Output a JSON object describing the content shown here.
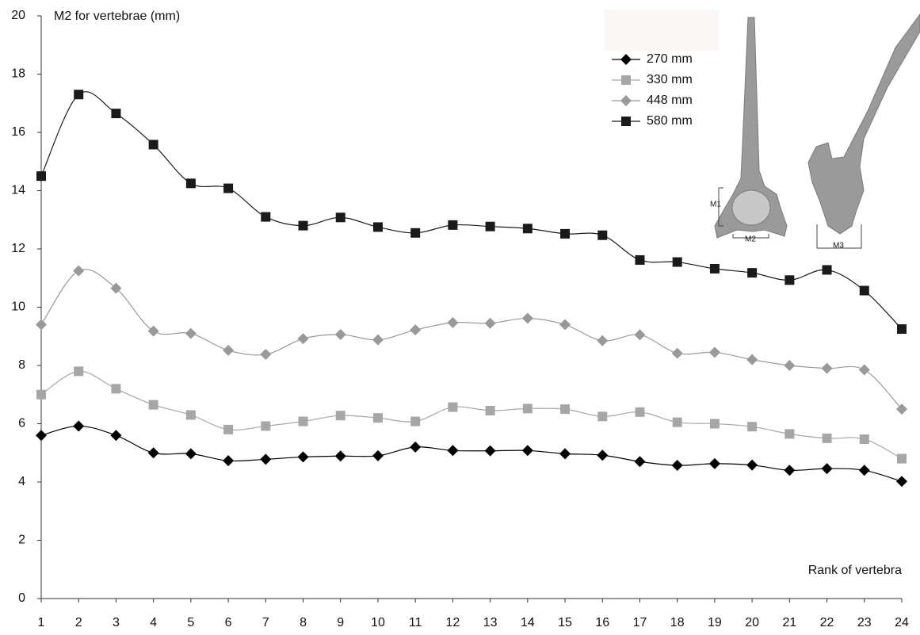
{
  "chart_data": {
    "type": "line",
    "y_label": "M2 for vertebrae (mm)",
    "x_label": "Rank of vertebra",
    "x": [
      1,
      2,
      3,
      4,
      5,
      6,
      7,
      8,
      9,
      10,
      11,
      12,
      13,
      14,
      15,
      16,
      17,
      18,
      19,
      20,
      21,
      22,
      23,
      24
    ],
    "xlim": [
      1,
      24
    ],
    "xticks": [
      1,
      2,
      3,
      4,
      5,
      6,
      7,
      8,
      9,
      10,
      11,
      12,
      13,
      14,
      15,
      16,
      17,
      18,
      19,
      20,
      21,
      22,
      23,
      24
    ],
    "ylim": [
      0,
      20
    ],
    "yticks": [
      0,
      2,
      4,
      6,
      8,
      10,
      12,
      14,
      16,
      18,
      20
    ],
    "grid": false,
    "legend": "top-right",
    "annotations": [
      "M1",
      "M2",
      "M3"
    ],
    "series": [
      {
        "name": "270 mm",
        "color": "#000000",
        "marker": "diamond",
        "values": [
          5.6,
          5.92,
          5.6,
          5.0,
          4.97,
          4.73,
          4.78,
          4.86,
          4.89,
          4.9,
          5.2,
          5.08,
          5.07,
          5.08,
          4.97,
          4.92,
          4.7,
          4.57,
          4.63,
          4.58,
          4.4,
          4.46,
          4.4,
          4.02
        ]
      },
      {
        "name": "330 mm",
        "color": "#a6a6a6",
        "marker": "square",
        "values": [
          7.0,
          7.8,
          7.2,
          6.65,
          6.3,
          5.8,
          5.92,
          6.08,
          6.28,
          6.2,
          6.08,
          6.57,
          6.45,
          6.52,
          6.5,
          6.25,
          6.4,
          6.05,
          6.0,
          5.9,
          5.65,
          5.5,
          5.47,
          4.8
        ]
      },
      {
        "name": "448 mm",
        "color": "#999999",
        "marker": "diamond",
        "values": [
          9.4,
          11.25,
          10.65,
          9.18,
          9.1,
          8.52,
          8.38,
          8.92,
          9.06,
          8.88,
          9.22,
          9.47,
          9.45,
          9.62,
          9.4,
          8.85,
          9.05,
          8.42,
          8.45,
          8.2,
          8.0,
          7.9,
          7.85,
          6.5
        ]
      },
      {
        "name": "580 mm",
        "color": "#1a1a1a",
        "marker": "square",
        "values": [
          14.5,
          17.3,
          16.65,
          15.58,
          14.25,
          14.08,
          13.1,
          12.8,
          13.08,
          12.75,
          12.55,
          12.82,
          12.77,
          12.7,
          12.52,
          12.47,
          11.62,
          11.55,
          11.32,
          11.18,
          10.93,
          11.28,
          10.57,
          9.25
        ]
      }
    ]
  }
}
